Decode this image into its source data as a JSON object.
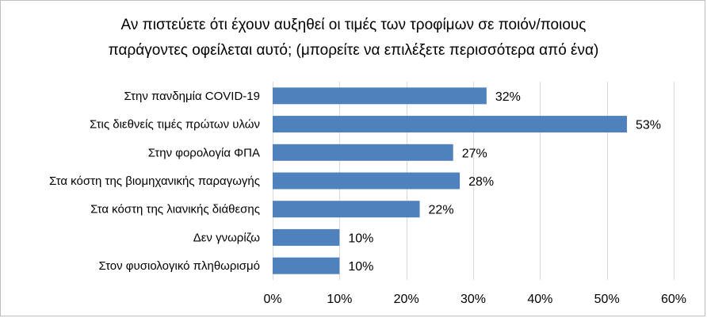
{
  "chart_data": {
    "type": "bar",
    "orientation": "horizontal",
    "title_lines": [
      "Αν πιστεύετε ότι έχουν αυξηθεί οι τιμές των τροφίμων σε ποιόν/ποιους",
      "παράγοντες οφείλεται αυτό; (μπορείτε να επιλέξετε περισσότερα από ένα)"
    ],
    "categories": [
      "Στην πανδημία COVID-19",
      "Στις διεθνείς τιμές πρώτων υλών",
      "Στην φορολογία ΦΠΑ",
      "Στα κόστη της βιομηχανικής παραγωγής",
      "Στα κόστη της λιανικής διάθεσης",
      "Δεν γνωρίζω",
      "Στον φυσιολογικό πληθωρισμό"
    ],
    "values": [
      32,
      53,
      27,
      28,
      22,
      10,
      10
    ],
    "value_labels": [
      "32%",
      "53%",
      "27%",
      "28%",
      "22%",
      "10%",
      "10%"
    ],
    "xlim": [
      0,
      60
    ],
    "xticks": [
      0,
      10,
      20,
      30,
      40,
      50,
      60
    ],
    "xtick_labels": [
      "0%",
      "10%",
      "20%",
      "30%",
      "40%",
      "50%",
      "60%"
    ],
    "grid": true,
    "legend": "none",
    "bar_color": "#4f81bd",
    "grid_color": "#d9d9d9"
  }
}
